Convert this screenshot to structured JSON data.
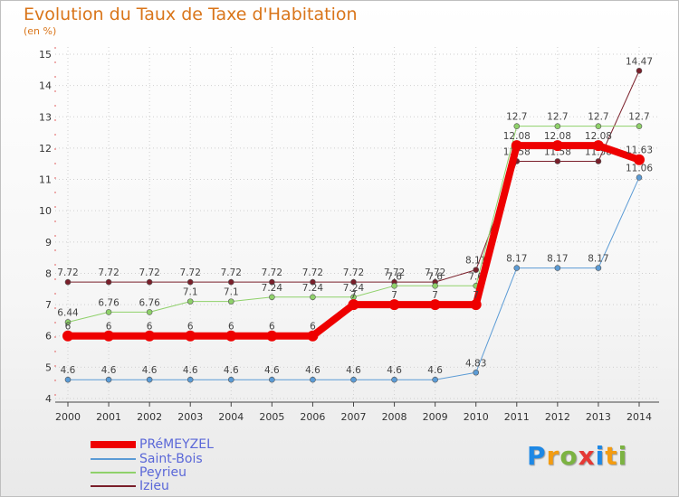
{
  "title": "Evolution du Taux de Taxe d'Habitation",
  "unit": "(en %)",
  "logo": {
    "letters": [
      "P",
      "r",
      "o",
      "x",
      "i",
      "t",
      "i"
    ],
    "colors": [
      "#1e88e5",
      "#f39c12",
      "#7cb342",
      "#e53935",
      "#1e88e5",
      "#f39c12",
      "#7cb342"
    ]
  },
  "chart_data": {
    "type": "line",
    "title": "Evolution du Taux de Taxe d'Habitation",
    "ylabel": "(en %)",
    "xlabel": "",
    "x": [
      "2000",
      "2001",
      "2002",
      "2003",
      "2004",
      "2005",
      "2006",
      "2007",
      "2008",
      "2009",
      "2010",
      "2011",
      "2012",
      "2013",
      "2014"
    ],
    "ylim": [
      4,
      15
    ],
    "yticks": [
      "4",
      "5",
      "6",
      "7",
      "8",
      "9",
      "10",
      "11",
      "12",
      "13",
      "14",
      "15"
    ],
    "series": [
      {
        "name": "Izieu",
        "color": "#7a1f2a",
        "width": 1,
        "values": [
          7.72,
          7.72,
          7.72,
          7.72,
          7.72,
          7.72,
          7.72,
          7.72,
          7.72,
          7.72,
          8.11,
          11.58,
          11.58,
          11.58,
          14.47
        ],
        "labels": [
          "7.72",
          "7.72",
          "7.72",
          "7.72",
          "7.72",
          "7.72",
          "7.72",
          "7.72",
          "7.72",
          "7.72",
          "8.11",
          "11.58",
          "11.58",
          "11.58",
          "14.47"
        ]
      },
      {
        "name": "Peyrieu",
        "color": "#8fd16a",
        "width": 1,
        "values": [
          6.44,
          6.76,
          6.76,
          7.1,
          7.1,
          7.24,
          7.24,
          7.24,
          7.6,
          7.6,
          7.6,
          12.7,
          12.7,
          12.7,
          12.7
        ],
        "labels": [
          "6.44",
          "6.76",
          "6.76",
          "7.1",
          "7.1",
          "7.24",
          "7.24",
          "7.24",
          "7.6",
          "7.6",
          "7.6",
          "12.7",
          "12.7",
          "12.7",
          "12.7"
        ]
      },
      {
        "name": "Saint-Bois",
        "color": "#5b9bd5",
        "width": 1,
        "values": [
          4.6,
          4.6,
          4.6,
          4.6,
          4.6,
          4.6,
          4.6,
          4.6,
          4.6,
          4.6,
          4.83,
          8.17,
          8.17,
          8.17,
          11.06
        ],
        "labels": [
          "4.6",
          "4.6",
          "4.6",
          "4.6",
          "4.6",
          "4.6",
          "4.6",
          "4.6",
          "4.6",
          "4.6",
          "4.83",
          "8.17",
          "8.17",
          "8.17",
          "11.06"
        ]
      },
      {
        "name": "PRéMEYZEL",
        "color": "#ee0000",
        "width": 8,
        "values": [
          6,
          6,
          6,
          6,
          6,
          6,
          6,
          7,
          7,
          7,
          7,
          12.08,
          12.08,
          12.08,
          11.63
        ],
        "labels": [
          "6",
          "6",
          "6",
          "6",
          "6",
          "6",
          "6",
          "7",
          "7",
          "7",
          "7",
          "12.08",
          "12.08",
          "12.08",
          "11.63"
        ]
      }
    ],
    "legend": [
      "PRéMEYZEL",
      "Saint-Bois",
      "Peyrieu",
      "Izieu"
    ]
  }
}
